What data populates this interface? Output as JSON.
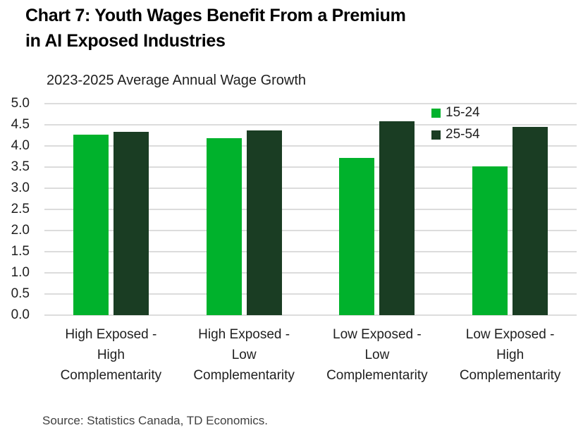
{
  "header": {
    "title_lines": [
      "Chart 7: Youth Wages Benefit From a Premium",
      "in AI Exposed Industries"
    ]
  },
  "chart_data": {
    "type": "bar",
    "title": "2023-2025 Average Annual Wage Growth",
    "xlabel": "",
    "ylabel": "",
    "ylim": [
      0,
      5
    ],
    "grid": "horizontal",
    "legend_position": "top-right",
    "y_ticks": [
      "5.0",
      "4.5",
      "4.0",
      "3.5",
      "3.0",
      "2.5",
      "2.0",
      "1.5",
      "1.0",
      "0.5",
      "0.0"
    ],
    "y_tick_values": [
      5,
      4.5,
      4,
      3.5,
      3,
      2.5,
      2,
      1.5,
      1,
      0.5,
      0
    ],
    "categories": [
      "High Exposed - High Complementarity",
      "High Exposed - Low Complementarity",
      "Low Exposed - Low Complementarity",
      "Low Exposed - High Complementarity"
    ],
    "categories_display": [
      "High Exposed -\nHigh\nComplementarity",
      "High Exposed -\nLow\nComplementarity",
      "Low Exposed -\nLow\nComplementarity",
      "Low Exposed -\nHigh\nComplementarity"
    ],
    "series": [
      {
        "name": "15-24",
        "color": "#00B22C",
        "values": [
          4.27,
          4.19,
          3.72,
          3.52
        ]
      },
      {
        "name": "25-54",
        "color": "#1A3D23",
        "values": [
          4.34,
          4.37,
          4.58,
          4.45
        ]
      }
    ]
  },
  "footer": {
    "source": "Source: Statistics Canada, TD Economics."
  },
  "colors": {
    "grid": "#DCDCDC",
    "title_text": "#000000",
    "body_text": "#1F1F1F",
    "series_youth": "#00B22C",
    "series_prime": "#1A3D23"
  }
}
